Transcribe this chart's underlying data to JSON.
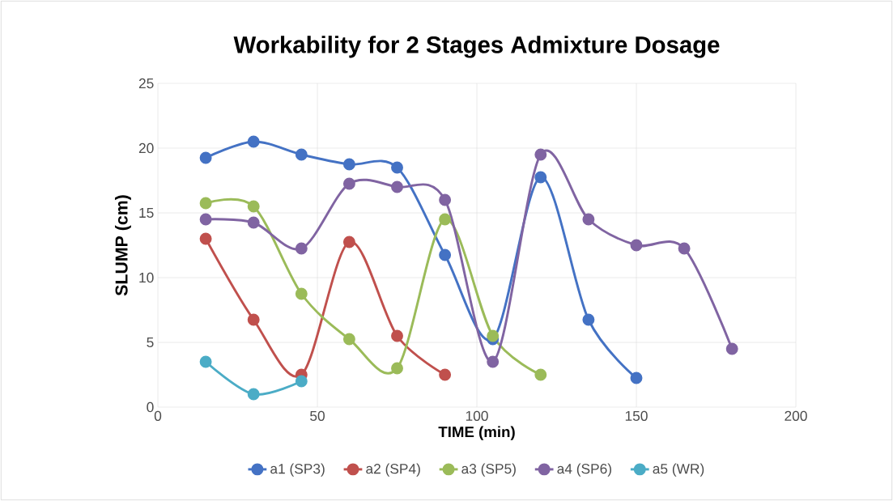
{
  "chart_data": {
    "type": "line",
    "title": "Workability for 2 Stages Admixture Dosage",
    "xlabel": "TIME (min)",
    "ylabel": "SLUMP (cm)",
    "xlim": [
      0,
      200
    ],
    "xticks": [
      0,
      50,
      100,
      150,
      200
    ],
    "ylim": [
      0,
      25
    ],
    "yticks": [
      0,
      5,
      10,
      15,
      20,
      25
    ],
    "grid": true,
    "legend": "bottom",
    "marker": "circle",
    "line_style": "solid",
    "series": [
      {
        "name": "a1 (SP3)",
        "color": "#4472c4",
        "x": [
          15,
          30,
          45,
          60,
          75,
          90,
          105,
          120,
          135,
          150
        ],
        "values": [
          19.25,
          20.5,
          19.5,
          18.75,
          18.5,
          11.75,
          5.25,
          17.75,
          6.75,
          2.25
        ]
      },
      {
        "name": "a2 (SP4)",
        "color": "#c0504d",
        "x": [
          15,
          30,
          45,
          60,
          75,
          90
        ],
        "values": [
          13,
          6.75,
          2.5,
          12.75,
          5.5,
          2.5
        ]
      },
      {
        "name": "a3 (SP5)",
        "color": "#9bbb59",
        "x": [
          15,
          30,
          45,
          60,
          75,
          90,
          105,
          120
        ],
        "values": [
          15.75,
          15.5,
          8.75,
          5.25,
          3,
          14.5,
          5.5,
          2.5
        ]
      },
      {
        "name": "a4 (SP6)",
        "color": "#8064a2",
        "x": [
          15,
          30,
          45,
          60,
          75,
          90,
          105,
          120,
          135,
          150,
          165,
          180
        ],
        "values": [
          14.5,
          14.25,
          12.25,
          17.25,
          17,
          16,
          3.5,
          19.5,
          14.5,
          12.5,
          12.25,
          4.5
        ]
      },
      {
        "name": "a5 (WR)",
        "color": "#4bacc6",
        "x": [
          15,
          30,
          45
        ],
        "values": [
          3.5,
          1,
          2
        ]
      }
    ]
  }
}
